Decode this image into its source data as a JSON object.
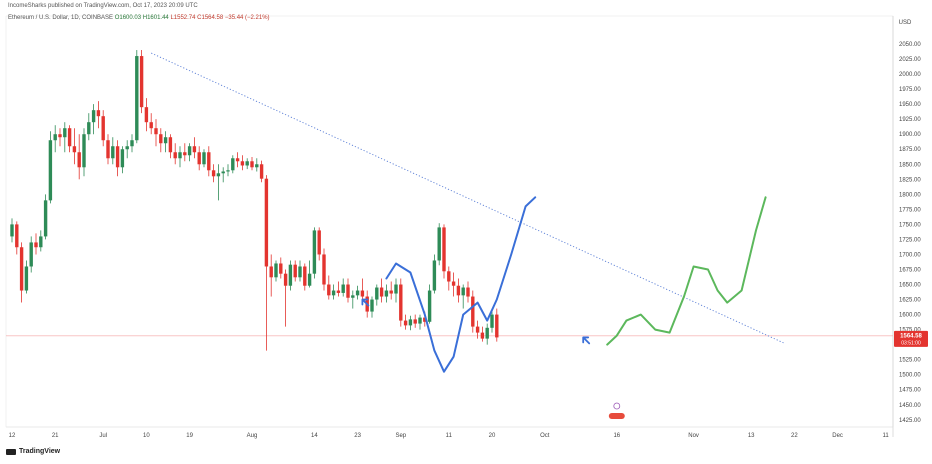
{
  "header": {
    "publisher": "IncomeSharks published on TradingView.com, Oct 17, 2023 20:09 UTC",
    "symbol": "Ethereum / U.S. Dollar, 1D, COINBASE",
    "open": "O1600.03",
    "high": "H1601.44",
    "low": "L1552.74",
    "close": "C1564.58",
    "change": "−35.44 (−2.21%)"
  },
  "brand": "TradingView",
  "colors": {
    "up": "#2e8b57",
    "down": "#e3342f",
    "trendline": "#5b7fd6",
    "projection_blue": "#3a6fd8",
    "projection_green": "#5cb85c",
    "price_line": "#f28b8b",
    "arrow": "#3a6fd8"
  },
  "chart_data": {
    "type": "candlestick",
    "currency": "USD",
    "y_axis": {
      "unit": "USD",
      "ylim": [
        1413,
        2080
      ],
      "ticks": [
        "2050.00",
        "2025.00",
        "2000.00",
        "1975.00",
        "1950.00",
        "1925.00",
        "1900.00",
        "1875.00",
        "1850.00",
        "1825.00",
        "1800.00",
        "1775.00",
        "1750.00",
        "1725.00",
        "1700.00",
        "1675.00",
        "1650.00",
        "1625.00",
        "1600.00",
        "1575.00",
        "1550.00",
        "1525.00",
        "1500.00",
        "1475.00",
        "1450.00",
        "1425.00"
      ]
    },
    "x_axis": {
      "ticks": [
        {
          "label": "12",
          "day": 0
        },
        {
          "label": "21",
          "day": 9
        },
        {
          "label": "Jul",
          "day": 19
        },
        {
          "label": "10",
          "day": 28
        },
        {
          "label": "19",
          "day": 37
        },
        {
          "label": "Aug",
          "day": 50
        },
        {
          "label": "14",
          "day": 63
        },
        {
          "label": "23",
          "day": 72
        },
        {
          "label": "Sep",
          "day": 81
        },
        {
          "label": "11",
          "day": 91
        },
        {
          "label": "20",
          "day": 100
        },
        {
          "label": "Oct",
          "day": 111
        },
        {
          "label": "16",
          "day": 126
        },
        {
          "label": "Nov",
          "day": 142
        },
        {
          "label": "13",
          "day": 154
        },
        {
          "label": "22",
          "day": 163
        },
        {
          "label": "Dec",
          "day": 172
        },
        {
          "label": "11",
          "day": 182
        }
      ]
    },
    "last_price": {
      "value": 1564.58,
      "label": "1564.58",
      "countdown": "03:51:00"
    },
    "candles": [
      [
        1730,
        1760,
        1720,
        1750
      ],
      [
        1750,
        1755,
        1700,
        1712
      ],
      [
        1712,
        1720,
        1620,
        1640
      ],
      [
        1640,
        1690,
        1635,
        1680
      ],
      [
        1680,
        1730,
        1670,
        1720
      ],
      [
        1720,
        1735,
        1700,
        1712
      ],
      [
        1712,
        1740,
        1705,
        1730
      ],
      [
        1730,
        1800,
        1725,
        1790
      ],
      [
        1790,
        1905,
        1785,
        1890
      ],
      [
        1890,
        1915,
        1870,
        1900
      ],
      [
        1900,
        1910,
        1880,
        1895
      ],
      [
        1895,
        1920,
        1870,
        1910
      ],
      [
        1910,
        1915,
        1870,
        1880
      ],
      [
        1880,
        1910,
        1850,
        1870
      ],
      [
        1870,
        1900,
        1825,
        1845
      ],
      [
        1845,
        1910,
        1830,
        1900
      ],
      [
        1900,
        1935,
        1890,
        1920
      ],
      [
        1920,
        1950,
        1900,
        1940
      ],
      [
        1940,
        1955,
        1910,
        1930
      ],
      [
        1930,
        1940,
        1880,
        1890
      ],
      [
        1890,
        1900,
        1850,
        1860
      ],
      [
        1860,
        1895,
        1850,
        1880
      ],
      [
        1880,
        1890,
        1830,
        1845
      ],
      [
        1845,
        1880,
        1835,
        1875
      ],
      [
        1875,
        1890,
        1860,
        1880
      ],
      [
        1880,
        1900,
        1870,
        1890
      ],
      [
        1890,
        2040,
        1885,
        2030
      ],
      [
        2030,
        2040,
        1935,
        1945
      ],
      [
        1945,
        1960,
        1905,
        1920
      ],
      [
        1920,
        1935,
        1900,
        1910
      ],
      [
        1910,
        1925,
        1880,
        1900
      ],
      [
        1900,
        1910,
        1870,
        1885
      ],
      [
        1885,
        1905,
        1870,
        1895
      ],
      [
        1895,
        1900,
        1860,
        1870
      ],
      [
        1870,
        1885,
        1850,
        1860
      ],
      [
        1860,
        1880,
        1845,
        1870
      ],
      [
        1870,
        1885,
        1855,
        1865
      ],
      [
        1865,
        1885,
        1855,
        1880
      ],
      [
        1880,
        1895,
        1860,
        1870
      ],
      [
        1870,
        1880,
        1840,
        1850
      ],
      [
        1850,
        1875,
        1845,
        1870
      ],
      [
        1870,
        1880,
        1830,
        1840
      ],
      [
        1840,
        1850,
        1820,
        1830
      ],
      [
        1830,
        1850,
        1790,
        1835
      ],
      [
        1835,
        1845,
        1820,
        1838
      ],
      [
        1838,
        1850,
        1830,
        1840
      ],
      [
        1840,
        1865,
        1835,
        1860
      ],
      [
        1860,
        1870,
        1845,
        1855
      ],
      [
        1855,
        1865,
        1840,
        1848
      ],
      [
        1848,
        1860,
        1842,
        1855
      ],
      [
        1855,
        1862,
        1840,
        1845
      ],
      [
        1845,
        1860,
        1838,
        1850
      ],
      [
        1850,
        1856,
        1820,
        1826
      ],
      [
        1826,
        1832,
        1540,
        1680
      ],
      [
        1680,
        1700,
        1630,
        1662
      ],
      [
        1662,
        1690,
        1655,
        1685
      ],
      [
        1685,
        1695,
        1660,
        1668
      ],
      [
        1668,
        1675,
        1580,
        1648
      ],
      [
        1648,
        1690,
        1640,
        1683
      ],
      [
        1683,
        1690,
        1655,
        1662
      ],
      [
        1662,
        1690,
        1655,
        1680
      ],
      [
        1680,
        1685,
        1640,
        1648
      ],
      [
        1648,
        1690,
        1645,
        1668
      ],
      [
        1668,
        1745,
        1660,
        1740
      ],
      [
        1740,
        1745,
        1690,
        1700
      ],
      [
        1700,
        1710,
        1640,
        1650
      ],
      [
        1650,
        1665,
        1625,
        1632
      ],
      [
        1632,
        1650,
        1625,
        1640
      ],
      [
        1640,
        1655,
        1630,
        1636
      ],
      [
        1636,
        1660,
        1630,
        1650
      ],
      [
        1650,
        1660,
        1620,
        1628
      ],
      [
        1628,
        1640,
        1610,
        1632
      ],
      [
        1632,
        1648,
        1625,
        1640
      ],
      [
        1640,
        1660,
        1625,
        1630
      ],
      [
        1630,
        1640,
        1595,
        1605
      ],
      [
        1605,
        1630,
        1595,
        1625
      ],
      [
        1625,
        1650,
        1615,
        1645
      ],
      [
        1645,
        1660,
        1620,
        1630
      ],
      [
        1630,
        1650,
        1620,
        1640
      ],
      [
        1640,
        1655,
        1625,
        1635
      ],
      [
        1635,
        1660,
        1620,
        1650
      ],
      [
        1650,
        1660,
        1580,
        1590
      ],
      [
        1590,
        1600,
        1575,
        1582
      ],
      [
        1582,
        1598,
        1574,
        1592
      ],
      [
        1592,
        1600,
        1578,
        1585
      ],
      [
        1585,
        1600,
        1575,
        1595
      ],
      [
        1595,
        1605,
        1580,
        1588
      ],
      [
        1588,
        1650,
        1585,
        1640
      ],
      [
        1640,
        1700,
        1635,
        1690
      ],
      [
        1690,
        1752,
        1682,
        1745
      ],
      [
        1745,
        1750,
        1660,
        1672
      ],
      [
        1672,
        1680,
        1640,
        1655
      ],
      [
        1655,
        1670,
        1630,
        1648
      ],
      [
        1648,
        1660,
        1620,
        1632
      ],
      [
        1632,
        1650,
        1610,
        1645
      ],
      [
        1645,
        1655,
        1620,
        1630
      ],
      [
        1630,
        1640,
        1570,
        1580
      ],
      [
        1580,
        1590,
        1560,
        1570
      ],
      [
        1570,
        1580,
        1555,
        1560
      ],
      [
        1560,
        1585,
        1550,
        1578
      ],
      [
        1578,
        1605,
        1570,
        1600
      ],
      [
        1600,
        1610,
        1555,
        1562
      ]
    ],
    "trendline": {
      "points": [
        {
          "day": 29,
          "value": 2035
        },
        {
          "day": 161,
          "value": 1552
        }
      ],
      "style": "dotted"
    },
    "projection_blue": {
      "points": [
        {
          "day": 78,
          "value": 1660
        },
        {
          "day": 80,
          "value": 1685
        },
        {
          "day": 83,
          "value": 1670
        },
        {
          "day": 86,
          "value": 1600
        },
        {
          "day": 88,
          "value": 1540
        },
        {
          "day": 90,
          "value": 1505
        },
        {
          "day": 92,
          "value": 1530
        },
        {
          "day": 94,
          "value": 1600
        },
        {
          "day": 97,
          "value": 1620
        },
        {
          "day": 99,
          "value": 1590
        },
        {
          "day": 101,
          "value": 1625
        },
        {
          "day": 104,
          "value": 1700
        },
        {
          "day": 107,
          "value": 1780
        },
        {
          "day": 109,
          "value": 1795
        }
      ]
    },
    "projection_green": {
      "points": [
        {
          "day": 124,
          "value": 1550
        },
        {
          "day": 126,
          "value": 1565
        },
        {
          "day": 128,
          "value": 1590
        },
        {
          "day": 131,
          "value": 1600
        },
        {
          "day": 134,
          "value": 1575
        },
        {
          "day": 137,
          "value": 1570
        },
        {
          "day": 140,
          "value": 1630
        },
        {
          "day": 142,
          "value": 1680
        },
        {
          "day": 145,
          "value": 1675
        },
        {
          "day": 147,
          "value": 1640
        },
        {
          "day": 149,
          "value": 1620
        },
        {
          "day": 152,
          "value": 1640
        },
        {
          "day": 155,
          "value": 1740
        },
        {
          "day": 157,
          "value": 1795
        }
      ]
    },
    "arrows": [
      {
        "day": 73,
        "value": 1625
      },
      {
        "day": 119,
        "value": 1562
      }
    ]
  }
}
